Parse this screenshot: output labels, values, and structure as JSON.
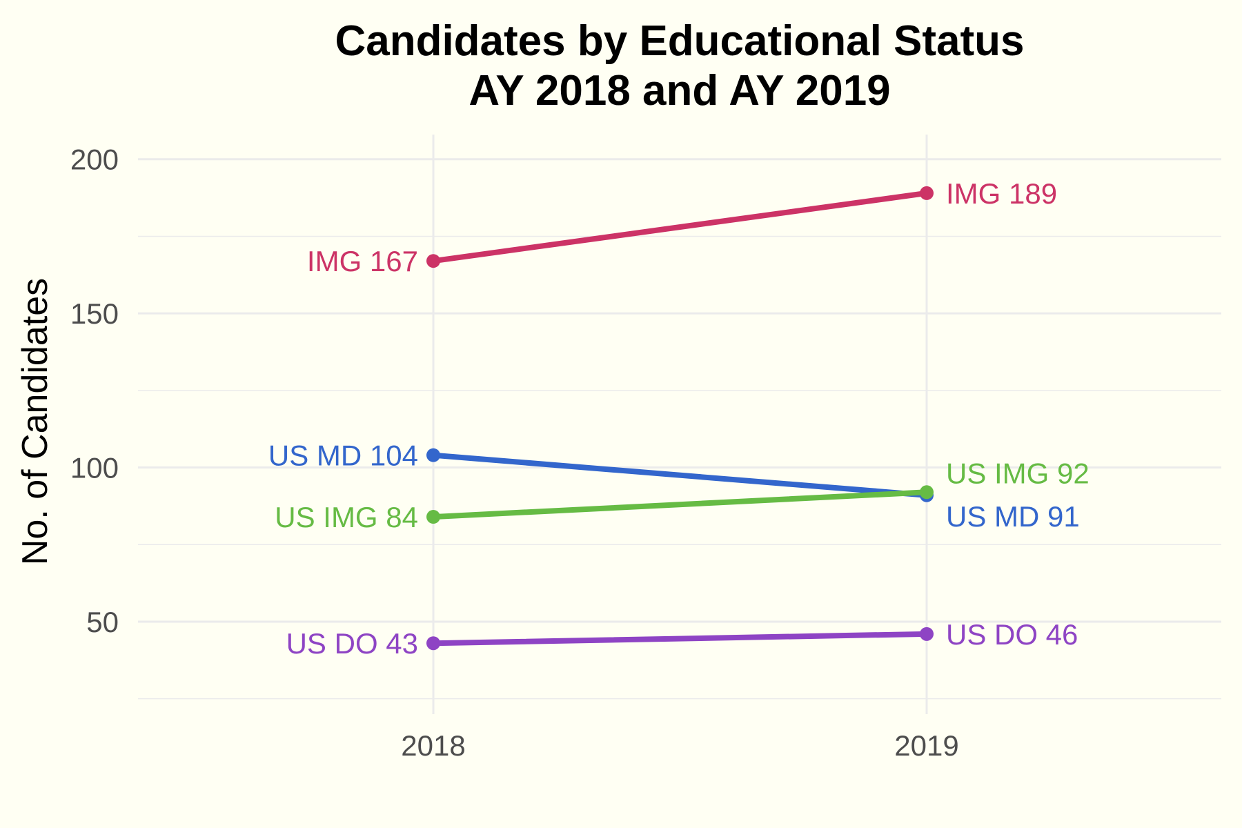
{
  "chart_data": {
    "type": "line",
    "title_line1": "Candidates by Educational Status",
    "title_line2": "AY 2018 and AY 2019",
    "ylabel": "No. of Candidates",
    "xlabel": "",
    "x": [
      "2018",
      "2019"
    ],
    "ylim": [
      20,
      208
    ],
    "yticks": [
      50,
      100,
      150,
      200
    ],
    "grid": true,
    "legend": "none",
    "series": [
      {
        "name": "IMG",
        "values": [
          167,
          189
        ],
        "color": "#cc3366",
        "labels": [
          "IMG 167",
          "IMG 189"
        ]
      },
      {
        "name": "US MD",
        "values": [
          104,
          91
        ],
        "color": "#3366cc",
        "labels": [
          "US MD 104",
          "US MD 91"
        ]
      },
      {
        "name": "US IMG",
        "values": [
          84,
          92
        ],
        "color": "#66bb44",
        "labels": [
          "US IMG 84",
          "US IMG 92"
        ]
      },
      {
        "name": "US DO",
        "values": [
          43,
          46
        ],
        "color": "#8e44c4",
        "labels": [
          "US DO 43",
          "US DO 46"
        ]
      }
    ]
  }
}
